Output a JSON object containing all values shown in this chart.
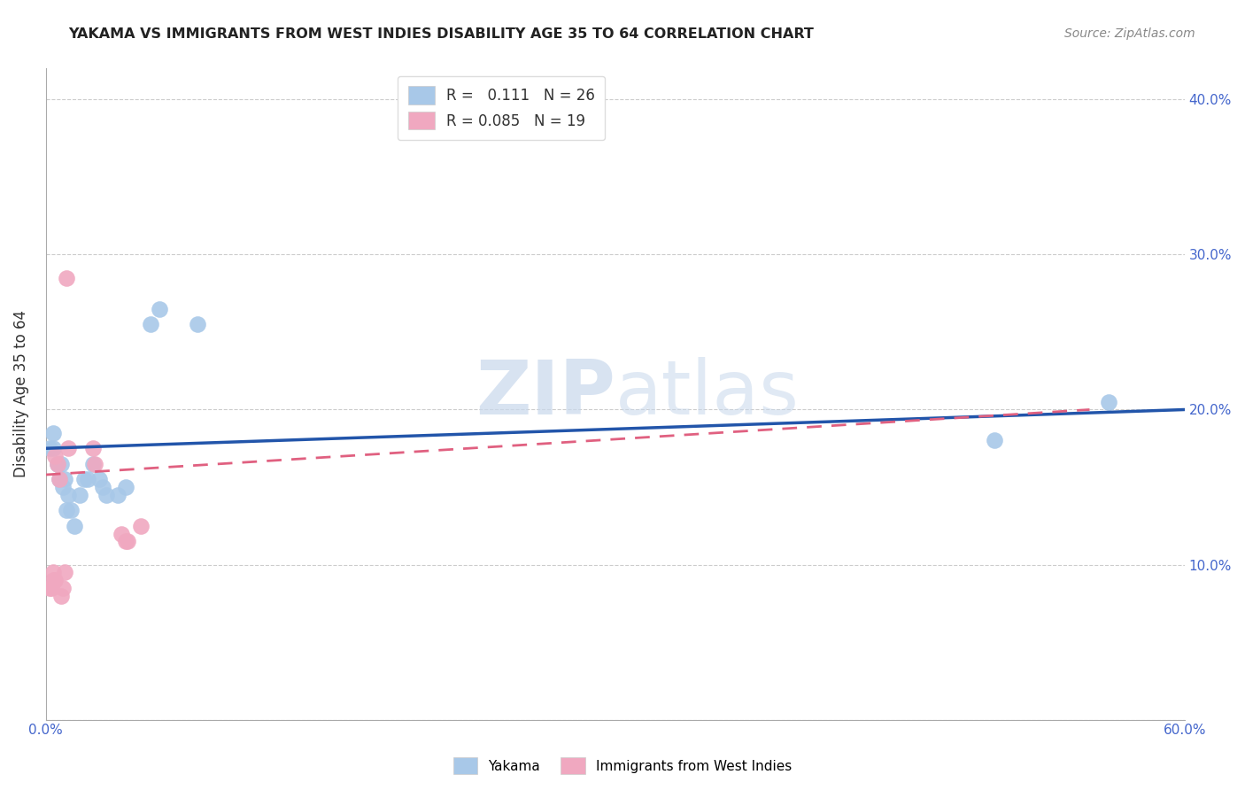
{
  "title": "YAKAMA VS IMMIGRANTS FROM WEST INDIES DISABILITY AGE 35 TO 64 CORRELATION CHART",
  "source": "Source: ZipAtlas.com",
  "ylabel": "Disability Age 35 to 64",
  "xmin": 0.0,
  "xmax": 0.6,
  "ymin": 0.0,
  "ymax": 0.42,
  "xticks": [
    0.0,
    0.1,
    0.2,
    0.3,
    0.4,
    0.5,
    0.6
  ],
  "xtick_labels": [
    "0.0%",
    "",
    "",
    "",
    "",
    "",
    "60.0%"
  ],
  "yticks": [
    0.0,
    0.1,
    0.2,
    0.3,
    0.4
  ],
  "right_ytick_labels": [
    "",
    "10.0%",
    "20.0%",
    "30.0%",
    "40.0%"
  ],
  "blue_R": "0.111",
  "blue_N": "26",
  "pink_R": "0.085",
  "pink_N": "19",
  "legend_entries": [
    "Yakama",
    "Immigrants from West Indies"
  ],
  "blue_color": "#a8c8e8",
  "pink_color": "#f0a8c0",
  "blue_line_color": "#2255aa",
  "pink_line_color": "#e06080",
  "watermark_color": "#c8d8ec",
  "yakama_x": [
    0.002,
    0.004,
    0.004,
    0.006,
    0.007,
    0.008,
    0.009,
    0.01,
    0.011,
    0.012,
    0.013,
    0.015,
    0.018,
    0.02,
    0.022,
    0.025,
    0.028,
    0.03,
    0.032,
    0.038,
    0.042,
    0.055,
    0.06,
    0.08,
    0.5,
    0.56
  ],
  "yakama_y": [
    0.175,
    0.175,
    0.185,
    0.165,
    0.155,
    0.165,
    0.15,
    0.155,
    0.135,
    0.145,
    0.135,
    0.125,
    0.145,
    0.155,
    0.155,
    0.165,
    0.155,
    0.15,
    0.145,
    0.145,
    0.15,
    0.255,
    0.265,
    0.255,
    0.18,
    0.205
  ],
  "westindies_x": [
    0.002,
    0.003,
    0.004,
    0.004,
    0.005,
    0.005,
    0.006,
    0.007,
    0.008,
    0.009,
    0.01,
    0.011,
    0.012,
    0.025,
    0.026,
    0.04,
    0.042,
    0.043,
    0.05
  ],
  "westindies_y": [
    0.085,
    0.085,
    0.09,
    0.095,
    0.09,
    0.17,
    0.165,
    0.155,
    0.08,
    0.085,
    0.095,
    0.285,
    0.175,
    0.175,
    0.165,
    0.12,
    0.115,
    0.115,
    0.125
  ],
  "blue_line_x0": 0.0,
  "blue_line_x1": 0.6,
  "blue_line_y0": 0.175,
  "blue_line_y1": 0.2,
  "pink_line_x0": 0.0,
  "pink_line_x1": 0.55,
  "pink_line_y0": 0.158,
  "pink_line_y1": 0.2
}
